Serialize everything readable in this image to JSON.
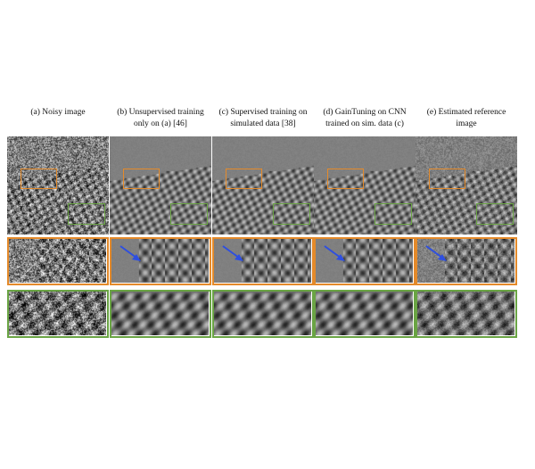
{
  "captions": [
    {
      "id": "a",
      "text": "(a) Noisy image"
    },
    {
      "id": "b",
      "text": "(b) Unsupervised training only on (a) [46]"
    },
    {
      "id": "c",
      "text": "(c) Supervised training on simulated data [38]"
    },
    {
      "id": "d",
      "text": "(d) GainTuning on CNN trained on sim. data (c)"
    },
    {
      "id": "e",
      "text": "(e) Estimated reference image"
    }
  ],
  "colors": {
    "orange": "#e48a2a",
    "green": "#6aa444",
    "arrow": "#2e4fe0"
  }
}
